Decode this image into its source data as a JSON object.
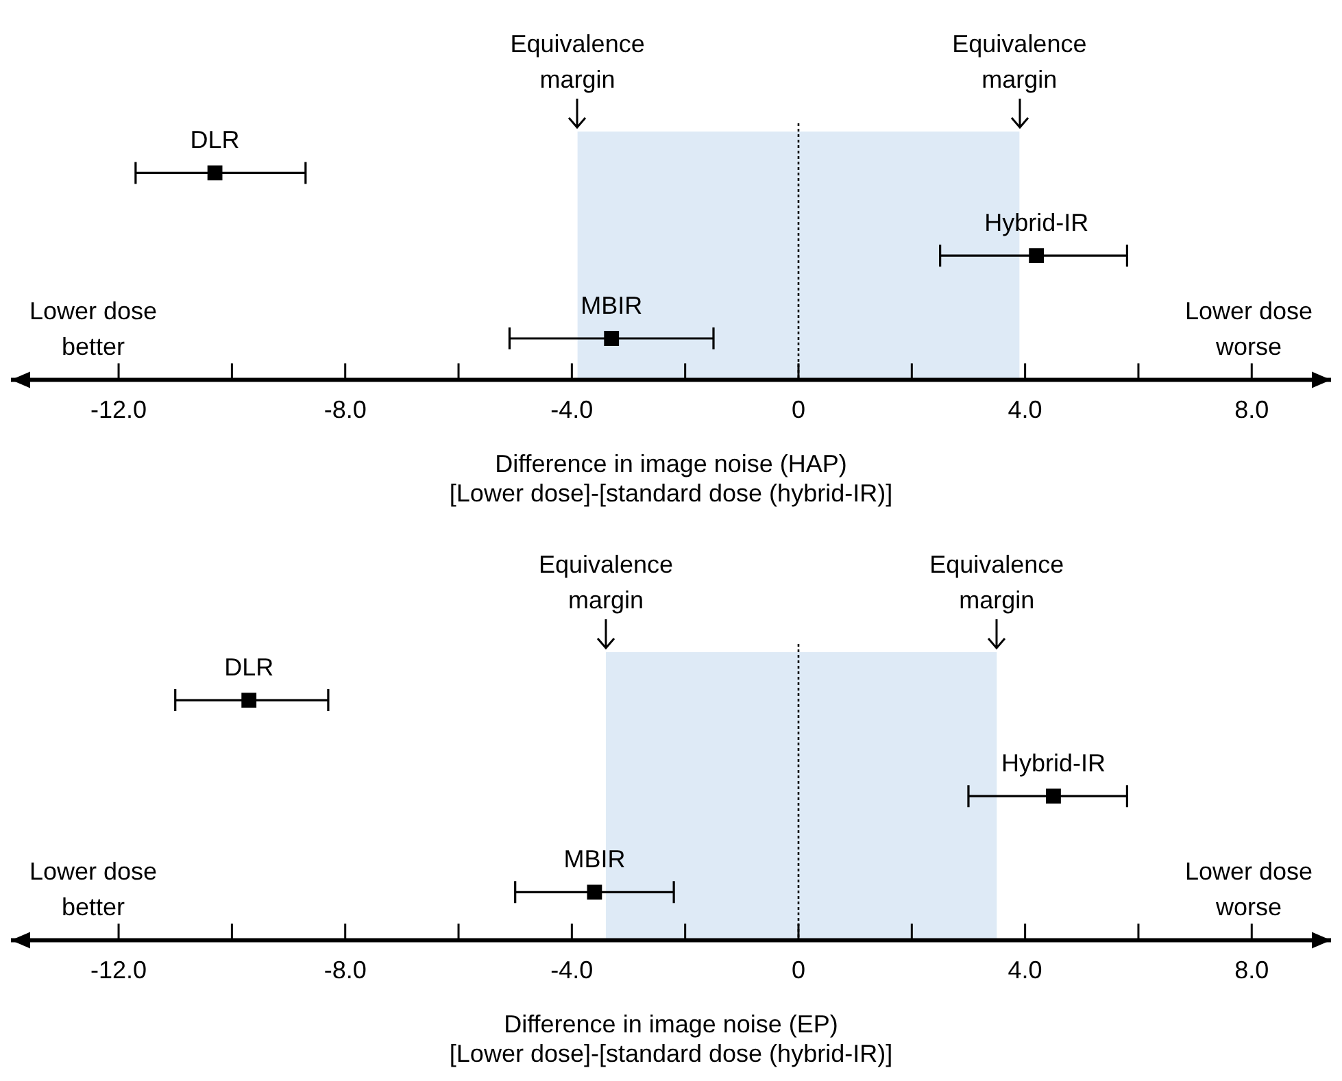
{
  "chart_data": [
    {
      "type": "scatter",
      "orientation": "horizontal",
      "categories": [
        null,
        null,
        null
      ],
      "marker": "square",
      "legend": false,
      "tick_labels": "x",
      "xlabel": "Difference in image noise (HAP)\n[Lower dose]-[standard dose (hybrid-IR)]",
      "xlim": [
        -13.9,
        9.4
      ],
      "xticks": [
        {
          "value": -12,
          "label": "-12.0"
        },
        {
          "value": -10,
          "label": null
        },
        {
          "value": -8,
          "label": "-8.0"
        },
        {
          "value": -6,
          "label": null
        },
        {
          "value": -4,
          "label": "-4.0"
        },
        {
          "value": -2,
          "label": null
        },
        0,
        {
          "value": 2,
          "label": null
        },
        {
          "value": 4,
          "label": "4.0"
        },
        {
          "value": 6,
          "label": null
        },
        {
          "value": 8,
          "label": "8.0"
        }
      ],
      "series": [
        {
          "name": "DLR",
          "color": "#000000",
          "values": [
            -10.3,
            null,
            null
          ],
          "errors": [
            [
              -11.7,
              -8.7
            ],
            null,
            null
          ]
        },
        {
          "name": "Hybrid-IR",
          "color": "#000000",
          "values": [
            null,
            4.2,
            null
          ],
          "errors": [
            null,
            [
              2.5,
              5.8
            ],
            null
          ]
        },
        {
          "name": "MBIR",
          "color": "#000000",
          "values": [
            null,
            null,
            -3.3
          ],
          "errors": [
            null,
            null,
            [
              -5.1,
              -1.5
            ]
          ]
        }
      ],
      "bands": [
        {
          "axis": "x",
          "from": -3.9,
          "to": 3.9,
          "color": "#deeaf6"
        }
      ],
      "ref_lines": [
        {
          "axis": "x",
          "value": 0,
          "line_style": "dotted"
        }
      ],
      "annotations": [
        "Equivalence margin",
        "Equivalence margin",
        "Lower dose better",
        "Lower dose worse"
      ]
    },
    {
      "type": "scatter",
      "orientation": "horizontal",
      "categories": [
        null,
        null,
        null
      ],
      "marker": "square",
      "legend": false,
      "tick_labels": "x",
      "xlabel": "Difference in image noise (EP)\n[Lower dose]-[standard dose (hybrid-IR)]",
      "xlim": [
        -13.9,
        9.4
      ],
      "xticks": [
        {
          "value": -12,
          "label": "-12.0"
        },
        {
          "value": -10,
          "label": null
        },
        {
          "value": -8,
          "label": "-8.0"
        },
        {
          "value": -6,
          "label": null
        },
        {
          "value": -4,
          "label": "-4.0"
        },
        {
          "value": -2,
          "label": null
        },
        0,
        {
          "value": 2,
          "label": null
        },
        {
          "value": 4,
          "label": "4.0"
        },
        {
          "value": 6,
          "label": null
        },
        {
          "value": 8,
          "label": "8.0"
        }
      ],
      "series": [
        {
          "name": "DLR",
          "color": "#000000",
          "values": [
            -9.7,
            null,
            null
          ],
          "errors": [
            [
              -11.0,
              -8.3
            ],
            null,
            null
          ]
        },
        {
          "name": "Hybrid-IR",
          "color": "#000000",
          "values": [
            null,
            4.5,
            null
          ],
          "errors": [
            null,
            [
              3.0,
              5.8
            ],
            null
          ]
        },
        {
          "name": "MBIR",
          "color": "#000000",
          "values": [
            null,
            null,
            -3.6
          ],
          "errors": [
            null,
            null,
            [
              -5.0,
              -2.2
            ]
          ]
        }
      ],
      "bands": [
        {
          "axis": "x",
          "from": -3.4,
          "to": 3.5,
          "color": "#deeaf6"
        }
      ],
      "ref_lines": [
        {
          "axis": "x",
          "value": 0,
          "line_style": "dotted"
        }
      ],
      "annotations": [
        "Equivalence margin",
        "Equivalence margin",
        "Lower dose better",
        "Lower dose worse"
      ]
    }
  ]
}
